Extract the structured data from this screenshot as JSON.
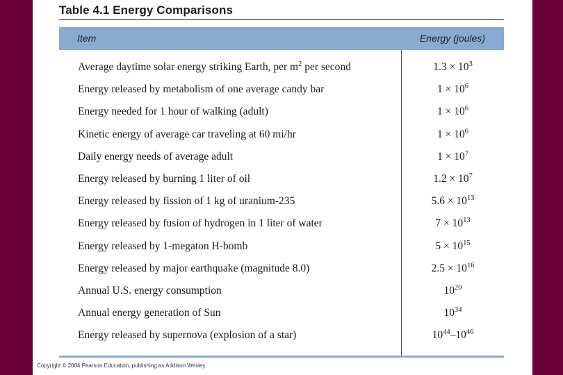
{
  "table": {
    "title": "Table 4.1 Energy Comparisons",
    "headers": {
      "item": "Item",
      "energy": "Energy (joules)"
    },
    "rows": [
      {
        "item": "Average daytime solar energy striking Earth, per m",
        "item_sup": "2",
        "item_after": " per second",
        "mantissa": "1.3 × 10",
        "exp": "3"
      },
      {
        "item": "Energy released by metabolism of one average candy bar",
        "mantissa": "1 × 10",
        "exp": "6"
      },
      {
        "item": "Energy needed for 1 hour of walking (adult)",
        "mantissa": "1 × 10",
        "exp": "6"
      },
      {
        "item": "Kinetic energy of average car traveling at 60 mi/hr",
        "mantissa": "1 × 10",
        "exp": "6"
      },
      {
        "item": "Daily energy needs of average adult",
        "mantissa": "1 × 10",
        "exp": "7"
      },
      {
        "item": "Energy released by burning 1 liter of oil",
        "mantissa": "1.2 × 10",
        "exp": "7"
      },
      {
        "item": "Energy released by fission of 1 kg of uranium-235",
        "mantissa": "5.6 × 10",
        "exp": "13"
      },
      {
        "item": "Energy released by fusion of hydrogen in 1 liter of water",
        "mantissa": "7 × 10",
        "exp": "13"
      },
      {
        "item": "Energy released by 1-megaton H-bomb",
        "mantissa": "5 × 10",
        "exp": "15"
      },
      {
        "item": "Energy released by major earthquake (magnitude 8.0)",
        "mantissa": "2.5 × 10",
        "exp": "16"
      },
      {
        "item": "Annual U.S. energy consumption",
        "mantissa": "10",
        "exp": "20"
      },
      {
        "item": "Annual energy generation of Sun",
        "mantissa": "10",
        "exp": "34"
      },
      {
        "item": "Energy released by supernova (explosion of a star)",
        "mantissa": "10",
        "exp": "44",
        "range_sep": "–10",
        "exp2": "46"
      }
    ]
  },
  "footer": {
    "copyright": "Copyright © 2004 Pearson Education, publishing as Addison Wesley."
  }
}
